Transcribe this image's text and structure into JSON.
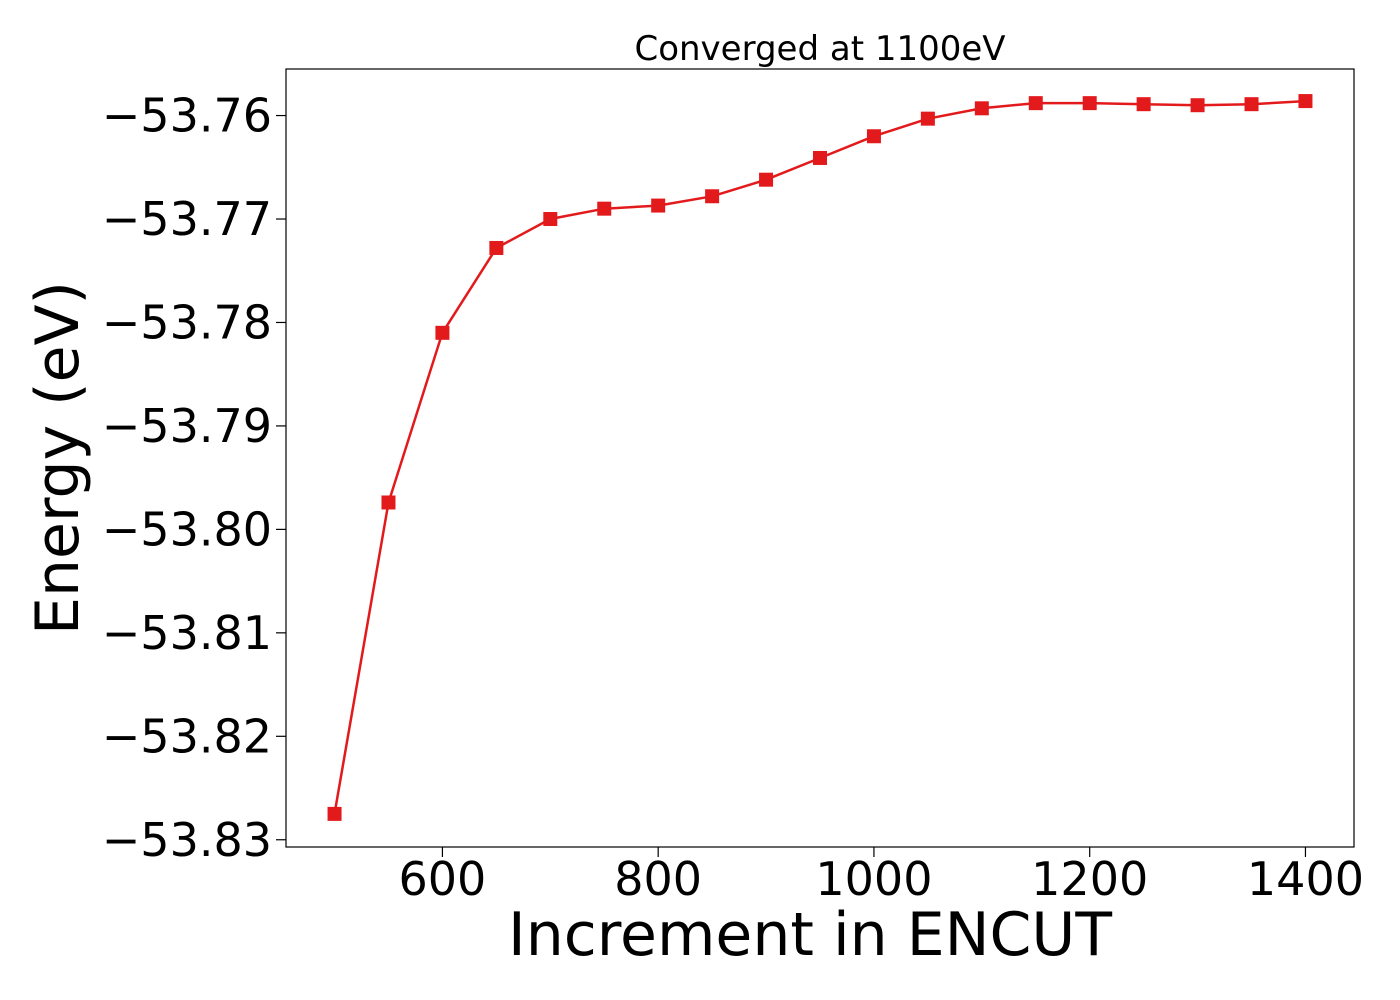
{
  "chart_data": {
    "type": "line",
    "title": "Converged at 1100eV",
    "xlabel": "Increment in ENCUT",
    "ylabel": "Energy (eV)",
    "xlim": [
      455,
      1445
    ],
    "ylim": [
      -53.8307,
      -53.7555
    ],
    "xticks": [
      600,
      800,
      1000,
      1200,
      1400
    ],
    "xtick_labels": [
      "600",
      "800",
      "1000",
      "1200",
      "1400"
    ],
    "yticks": [
      -53.76,
      -53.77,
      -53.78,
      -53.79,
      -53.8,
      -53.81,
      -53.82,
      -53.83
    ],
    "ytick_labels": [
      "−53.76",
      "−53.77",
      "−53.78",
      "−53.79",
      "−53.80",
      "−53.81",
      "−53.82",
      "−53.83"
    ],
    "grid": false,
    "series": [
      {
        "color": "#e31a1c",
        "marker": "square",
        "x": [
          500,
          550,
          600,
          650,
          700,
          750,
          800,
          850,
          900,
          950,
          1000,
          1050,
          1100,
          1150,
          1200,
          1250,
          1300,
          1350,
          1400
        ],
        "y": [
          -53.8275,
          -53.7974,
          -53.781,
          -53.7728,
          -53.77,
          -53.769,
          -53.7687,
          -53.7678,
          -53.7662,
          -53.7641,
          -53.762,
          -53.7603,
          -53.7593,
          -53.7588,
          -53.7588,
          -53.7589,
          -53.759,
          -53.7589,
          -53.7586
        ]
      }
    ]
  }
}
